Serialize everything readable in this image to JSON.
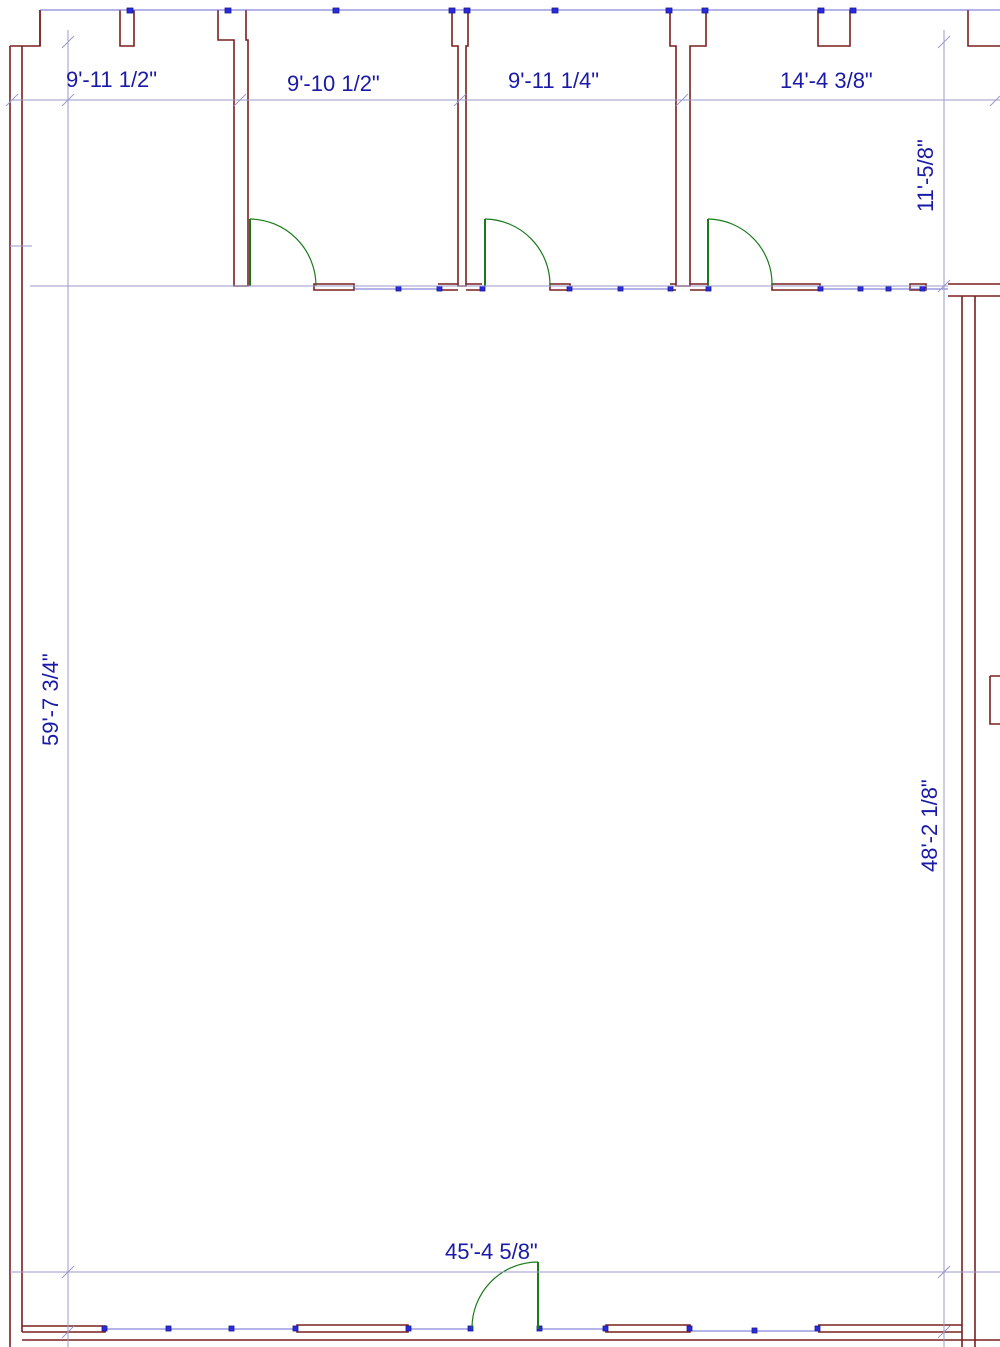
{
  "dimensions": {
    "room1_width": "9'-11 1/2\"",
    "room2_width": "9'-10 1/2\"",
    "room3_width": "9'-11 1/4\"",
    "room4_width": "14'-4 3/8\"",
    "side_rooms_depth": "11'-5/8\"",
    "overall_depth": "59'-7 3/4\"",
    "main_room_depth": "48'-2 1/8\"",
    "overall_width": "45'-4 5/8\""
  },
  "colors": {
    "wall": "#7a1f1f",
    "dimension_line": "#9a9ac8",
    "dimension_text": "#1a1aa8",
    "door": "#1a7a1a",
    "window": "#2a2ae0"
  }
}
